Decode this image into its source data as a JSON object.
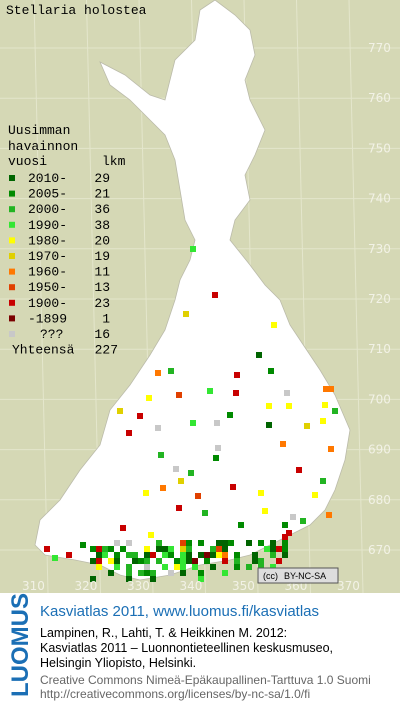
{
  "title": "Stellaria holostea",
  "legend": {
    "heading": [
      "Uusimman",
      "havainnon"
    ],
    "year_header": "vuosi",
    "count_header": "lkm",
    "rows": [
      {
        "label": "2010-",
        "count": 29,
        "color": "#006400"
      },
      {
        "label": "2005-",
        "count": 21,
        "color": "#008a00"
      },
      {
        "label": "2000-",
        "count": 36,
        "color": "#22b422"
      },
      {
        "label": "1990-",
        "count": 38,
        "color": "#33e633"
      },
      {
        "label": "1980-",
        "count": 20,
        "color": "#ffff00"
      },
      {
        "label": "1970-",
        "count": 19,
        "color": "#e0d000"
      },
      {
        "label": "1960-",
        "count": 11,
        "color": "#ff7800"
      },
      {
        "label": "1950-",
        "count": 13,
        "color": "#e04000"
      },
      {
        "label": "1900-",
        "count": 23,
        "color": "#c80000"
      },
      {
        "label": "-1899",
        "count": 1,
        "color": "#7a0000"
      },
      {
        "label": "???",
        "count": 16,
        "color": "#c8c8c8"
      }
    ],
    "total_label": "Yhteensä",
    "total": 227
  },
  "map": {
    "northing_labels": [
      770,
      760,
      750,
      740,
      730,
      720,
      710,
      700,
      690,
      680,
      670
    ],
    "easting_labels": [
      310,
      320,
      330,
      340,
      350,
      360,
      370
    ],
    "license_badge": "BY-NC-SA"
  },
  "footer": {
    "logo": "LUOMUS",
    "headline": "Kasviatlas 2011, www.luomus.fi/kasviatlas",
    "citation": [
      "Lampinen, R., Lahti, T. & Heikkinen M. 2012:",
      "Kasviatlas 2011 – Luonnontieteellinen keskusmuseo,",
      "Helsingin Yliopisto, Helsinki."
    ],
    "license": [
      "Creative Commons Nimeä-Epäkaupallinen-Tarttuva 1.0 Suomi",
      "http://creativecommons.org/licenses/by-nc-sa/1.0/fi"
    ]
  }
}
